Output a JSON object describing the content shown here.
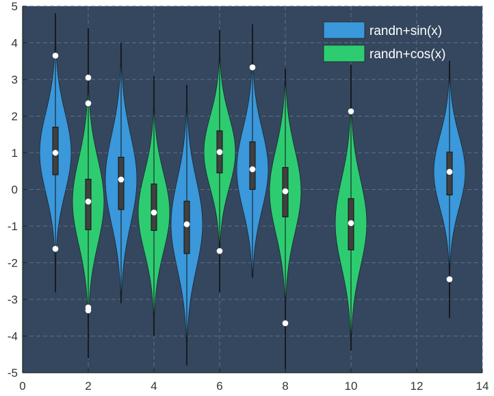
{
  "chart_data": {
    "type": "violin",
    "title": "",
    "xlabel": "",
    "ylabel": "",
    "xlim": [
      0,
      14
    ],
    "ylim": [
      -5,
      5
    ],
    "xticks": [
      0,
      2,
      4,
      6,
      8,
      10,
      12,
      14
    ],
    "yticks": [
      -5,
      -4,
      -3,
      -2,
      -1,
      0,
      1,
      2,
      3,
      4,
      5
    ],
    "x_tick_labels": [
      "0",
      "2",
      "4",
      "6",
      "8",
      "10",
      "12",
      "14"
    ],
    "y_tick_labels": [
      "-5",
      "-4",
      "-3",
      "-2",
      "-1",
      "0",
      "1",
      "2",
      "3",
      "4",
      "5"
    ],
    "grid": true,
    "legend_position": "top-right",
    "background_color": "#34475e",
    "series": [
      {
        "name": "randn+sin(x)",
        "color": "#3a98db",
        "violins": [
          {
            "x": 1,
            "min": -2.8,
            "max": 4.8,
            "q1": 0.4,
            "median": 1.0,
            "q3": 1.7,
            "outliers": [
              3.65,
              -1.62
            ]
          },
          {
            "x": 3,
            "min": -3.1,
            "max": 4.0,
            "q1": -0.55,
            "median": 0.27,
            "q3": 0.88,
            "outliers": []
          },
          {
            "x": 5,
            "min": -4.8,
            "max": 2.85,
            "q1": -1.75,
            "median": -0.95,
            "q3": -0.32,
            "outliers": []
          },
          {
            "x": 7,
            "min": -2.4,
            "max": 4.5,
            "q1": 0.0,
            "median": 0.55,
            "q3": 1.3,
            "outliers": [
              3.33
            ]
          },
          {
            "x": 13,
            "min": -3.5,
            "max": 3.5,
            "q1": -0.15,
            "median": 0.48,
            "q3": 1.02,
            "outliers": [
              -2.45
            ]
          }
        ]
      },
      {
        "name": "randn+cos(x)",
        "color": "#2ecc71",
        "violins": [
          {
            "x": 2,
            "min": -4.6,
            "max": 4.4,
            "q1": -1.1,
            "median": -0.33,
            "q3": 0.28,
            "outliers": [
              3.05,
              2.35,
              -3.22,
              -3.3
            ]
          },
          {
            "x": 4,
            "min": -4.0,
            "max": 3.1,
            "q1": -1.12,
            "median": -0.63,
            "q3": 0.15,
            "outliers": []
          },
          {
            "x": 6,
            "min": -2.8,
            "max": 4.35,
            "q1": 0.45,
            "median": 1.02,
            "q3": 1.6,
            "outliers": [
              -1.68
            ]
          },
          {
            "x": 8,
            "min": -4.9,
            "max": 3.3,
            "q1": -0.75,
            "median": -0.05,
            "q3": 0.6,
            "outliers": [
              -3.65
            ]
          },
          {
            "x": 10,
            "min": -4.4,
            "max": 3.4,
            "q1": -1.65,
            "median": -0.92,
            "q3": -0.25,
            "outliers": [
              2.13
            ]
          }
        ]
      }
    ]
  }
}
